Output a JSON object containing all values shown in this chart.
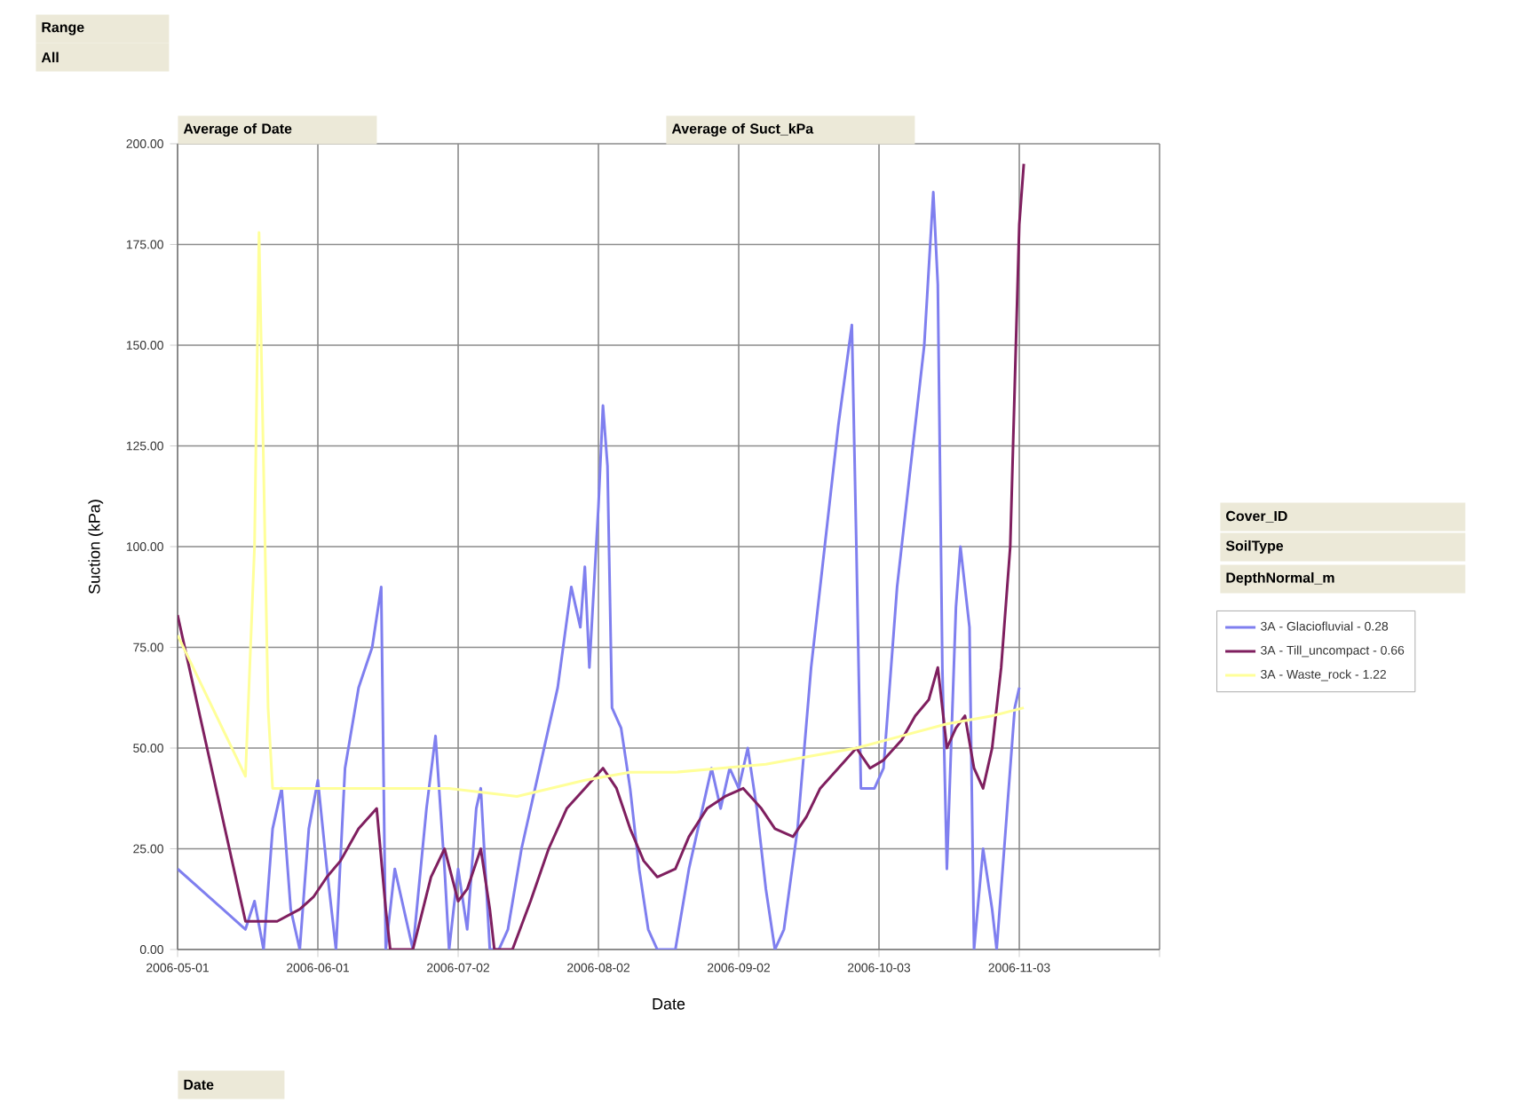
{
  "chart_data": {
    "type": "line",
    "xlabel": "Date",
    "ylabel": "Suction (kPa)",
    "xlim": [
      "2006-05-01",
      "2006-12-04"
    ],
    "xticks": [
      "2006-05-01",
      "2006-06-01",
      "2006-07-02",
      "2006-08-02",
      "2006-09-02",
      "2006-10-03",
      "2006-11-03",
      {
        "value": "2006-12-04",
        "label": null
      }
    ],
    "ylim": [
      0,
      200
    ],
    "yticks": [
      {
        "value": 0,
        "label": "0.00"
      },
      {
        "value": 25,
        "label": "25.00"
      },
      {
        "value": 50,
        "label": "50.00"
      },
      {
        "value": 75,
        "label": "75.00"
      },
      {
        "value": 100,
        "label": "100.00"
      },
      {
        "value": 125,
        "label": "125.00"
      },
      {
        "value": 150,
        "label": "150.00"
      },
      {
        "value": 175,
        "label": "175.00"
      },
      {
        "value": 200,
        "label": "200.00"
      }
    ],
    "grid": true,
    "legend": "right",
    "marker": "none",
    "line_style": "solid",
    "annotations": [
      "Range",
      "All",
      "Average of Date",
      "Average of Suct_kPa",
      "Cover_ID",
      "SoilType",
      "DepthNormal_m",
      "Date"
    ],
    "series": [
      {
        "name": "3A - Glaciofluvial - 0.28",
        "color": "#7f7fef",
        "x": [
          "2006-05-01",
          "2006-05-16",
          "2006-05-18",
          "2006-05-20",
          "2006-05-22",
          "2006-05-24",
          "2006-05-26",
          "2006-05-28",
          "2006-05-30",
          "2006-06-01",
          "2006-06-03",
          "2006-06-05",
          "2006-06-07",
          "2006-06-10",
          "2006-06-13",
          "2006-06-15",
          "2006-06-16",
          "2006-06-18",
          "2006-06-20",
          "2006-06-22",
          "2006-06-25",
          "2006-06-27",
          "2006-06-29",
          "2006-06-30",
          "2006-07-02",
          "2006-07-04",
          "2006-07-06",
          "2006-07-07",
          "2006-07-09",
          "2006-07-11",
          "2006-07-13",
          "2006-07-16",
          "2006-07-20",
          "2006-07-24",
          "2006-07-27",
          "2006-07-29",
          "2006-07-30",
          "2006-07-31",
          "2006-08-02",
          "2006-08-03",
          "2006-08-04",
          "2006-08-05",
          "2006-08-07",
          "2006-08-09",
          "2006-08-11",
          "2006-08-13",
          "2006-08-15",
          "2006-08-19",
          "2006-08-22",
          "2006-08-25",
          "2006-08-27",
          "2006-08-29",
          "2006-08-31",
          "2006-09-02",
          "2006-09-04",
          "2006-09-06",
          "2006-09-08",
          "2006-09-10",
          "2006-09-12",
          "2006-09-15",
          "2006-09-18",
          "2006-09-21",
          "2006-09-24",
          "2006-09-27",
          "2006-09-28",
          "2006-09-29",
          "2006-10-02",
          "2006-10-04",
          "2006-10-07",
          "2006-10-10",
          "2006-10-13",
          "2006-10-15",
          "2006-10-16",
          "2006-10-17",
          "2006-10-18",
          "2006-10-20",
          "2006-10-21",
          "2006-10-23",
          "2006-10-24",
          "2006-10-26",
          "2006-10-28",
          "2006-10-29",
          "2006-10-31",
          "2006-11-02",
          "2006-11-03"
        ],
        "values": [
          20,
          5,
          12,
          0,
          30,
          40,
          10,
          0,
          30,
          42,
          20,
          0,
          45,
          65,
          75,
          90,
          0,
          20,
          10,
          0,
          35,
          53,
          20,
          0,
          20,
          5,
          35,
          40,
          0,
          0,
          5,
          25,
          45,
          65,
          90,
          80,
          95,
          70,
          110,
          135,
          120,
          60,
          55,
          40,
          20,
          5,
          0,
          0,
          20,
          35,
          45,
          35,
          45,
          40,
          50,
          35,
          15,
          0,
          5,
          30,
          70,
          100,
          130,
          155,
          100,
          40,
          40,
          45,
          90,
          120,
          150,
          188,
          165,
          70,
          20,
          85,
          100,
          80,
          0,
          25,
          10,
          0,
          30,
          60,
          65
        ]
      },
      {
        "name": "3A - Till_uncompact - 0.66",
        "color": "#7f1f5f",
        "x": [
          "2006-05-01",
          "2006-05-16",
          "2006-05-23",
          "2006-05-28",
          "2006-05-31",
          "2006-06-03",
          "2006-06-06",
          "2006-06-10",
          "2006-06-14",
          "2006-06-16",
          "2006-06-17",
          "2006-06-22",
          "2006-06-26",
          "2006-06-29",
          "2006-07-02",
          "2006-07-04",
          "2006-07-07",
          "2006-07-09",
          "2006-07-10",
          "2006-07-14",
          "2006-07-18",
          "2006-07-22",
          "2006-07-26",
          "2006-07-30",
          "2006-08-03",
          "2006-08-06",
          "2006-08-09",
          "2006-08-12",
          "2006-08-15",
          "2006-08-19",
          "2006-08-22",
          "2006-08-26",
          "2006-08-30",
          "2006-09-03",
          "2006-09-07",
          "2006-09-10",
          "2006-09-14",
          "2006-09-17",
          "2006-09-20",
          "2006-09-24",
          "2006-09-28",
          "2006-10-01",
          "2006-10-04",
          "2006-10-08",
          "2006-10-11",
          "2006-10-14",
          "2006-10-16",
          "2006-10-18",
          "2006-10-20",
          "2006-10-22",
          "2006-10-24",
          "2006-10-26",
          "2006-10-28",
          "2006-10-30",
          "2006-11-01",
          "2006-11-02",
          "2006-11-03",
          "2006-11-04"
        ],
        "values": [
          83,
          7,
          7,
          10,
          13,
          18,
          22,
          30,
          35,
          10,
          0,
          0,
          18,
          25,
          12,
          15,
          25,
          10,
          0,
          0,
          12,
          25,
          35,
          40,
          45,
          40,
          30,
          22,
          18,
          20,
          28,
          35,
          38,
          40,
          35,
          30,
          28,
          33,
          40,
          45,
          50,
          45,
          47,
          52,
          58,
          62,
          70,
          50,
          55,
          58,
          45,
          40,
          50,
          70,
          100,
          140,
          180,
          195
        ]
      },
      {
        "name": "3A - Waste_rock - 1.22",
        "color": "#ffff99",
        "x": [
          "2006-05-01",
          "2006-05-16",
          "2006-05-18",
          "2006-05-19",
          "2006-05-20",
          "2006-05-21",
          "2006-05-22",
          "2006-05-31",
          "2006-06-15",
          "2006-06-30",
          "2006-07-15",
          "2006-07-30",
          "2006-08-09",
          "2006-08-19",
          "2006-08-29",
          "2006-09-08",
          "2006-09-18",
          "2006-09-28",
          "2006-10-08",
          "2006-10-18",
          "2006-10-28",
          "2006-11-04"
        ],
        "values": [
          78,
          43,
          100,
          178,
          120,
          60,
          40,
          40,
          40,
          40,
          38,
          42,
          44,
          44,
          45,
          46,
          48,
          50,
          53,
          56,
          58,
          60
        ]
      }
    ]
  }
}
